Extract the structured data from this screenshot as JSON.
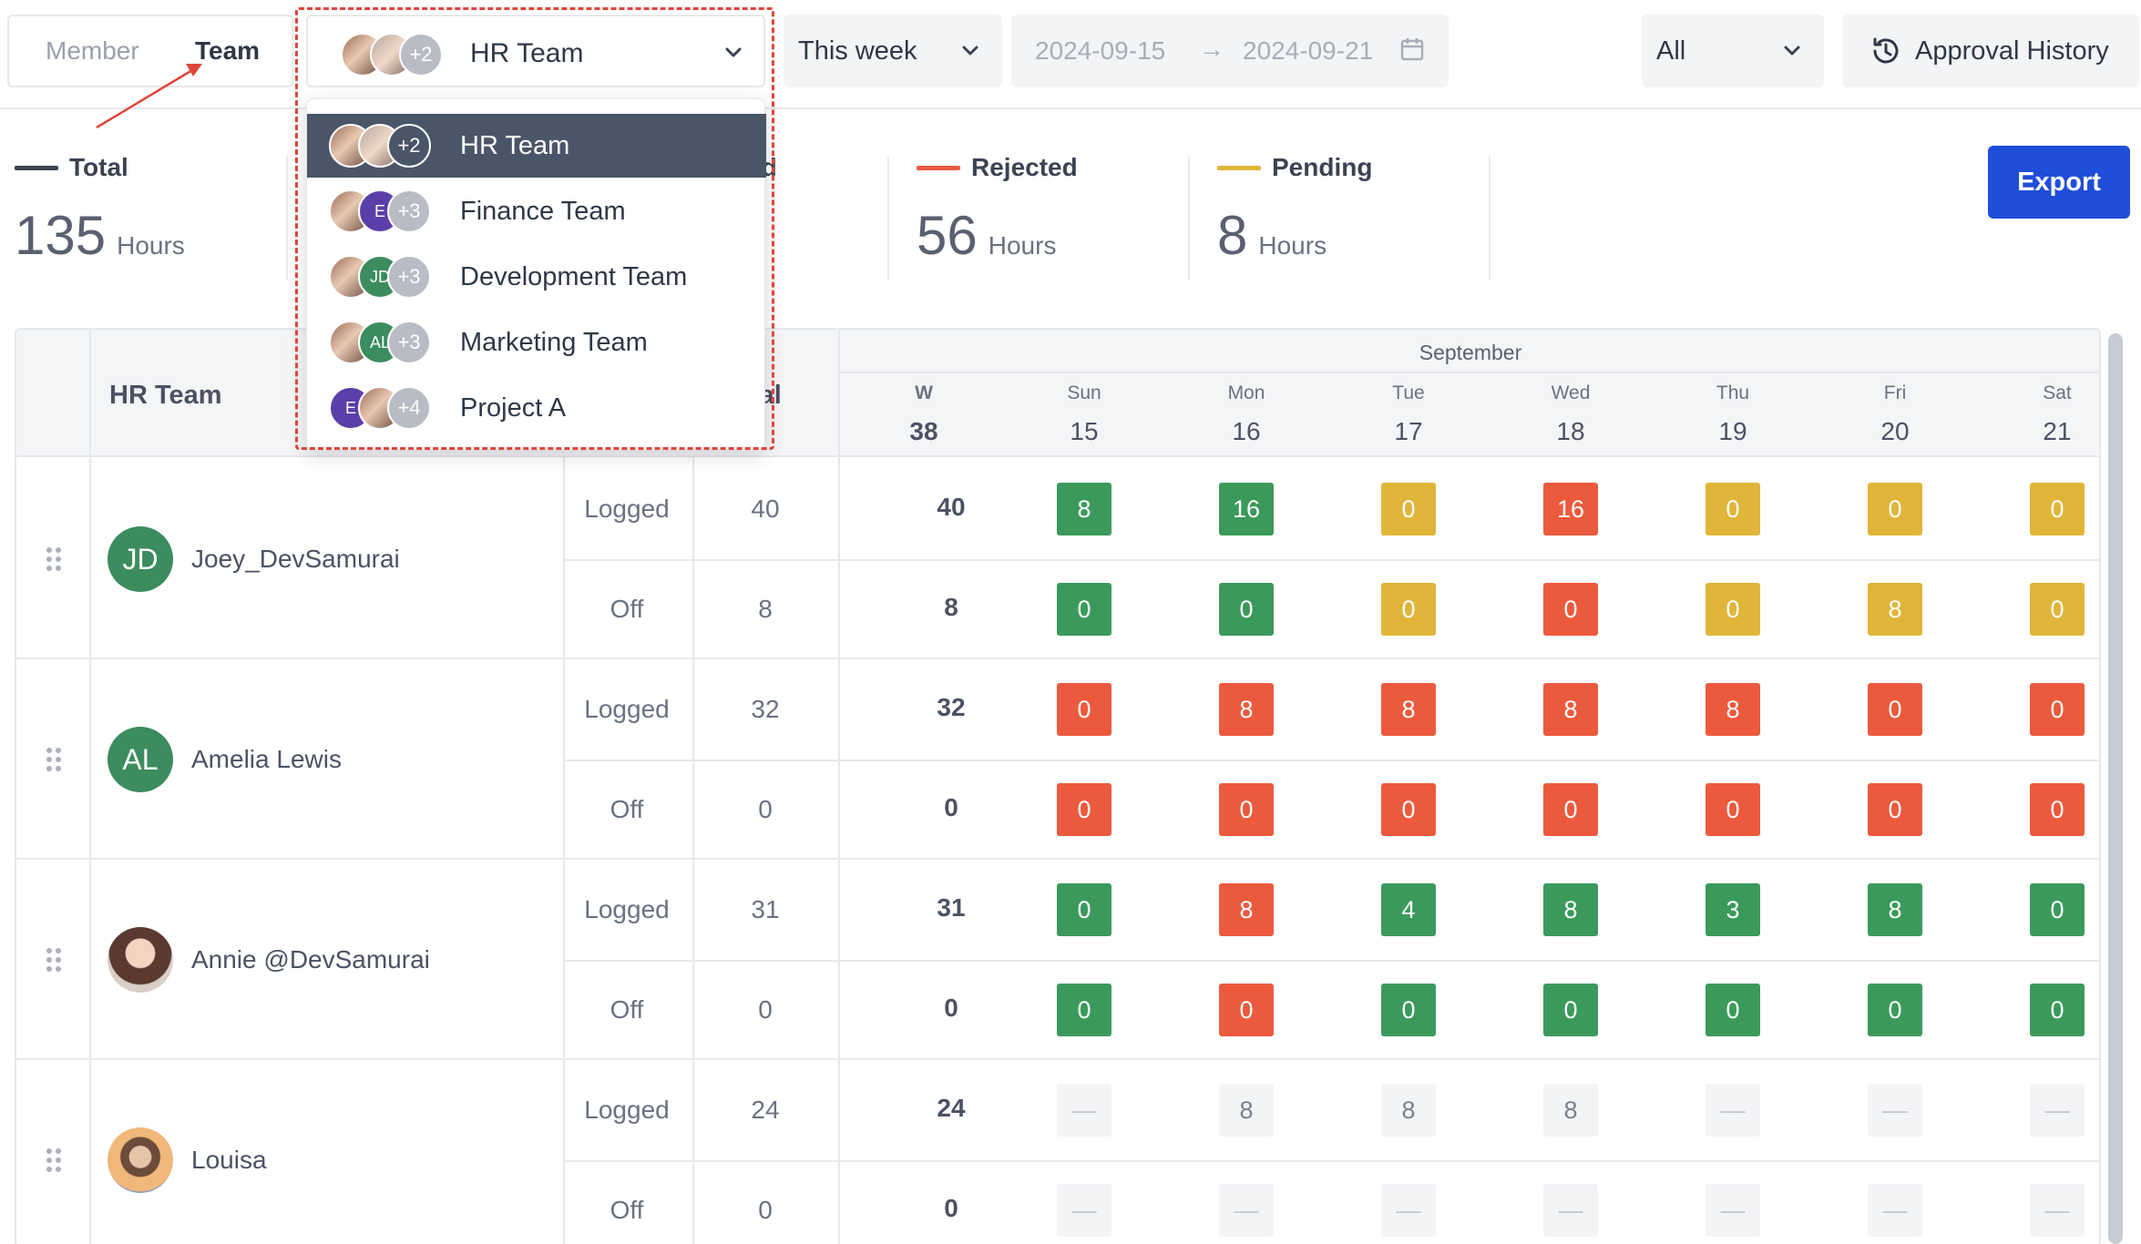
{
  "view_toggle": {
    "member": "Member",
    "team": "Team"
  },
  "team_select": {
    "selected": "HR Team",
    "avatar_more": "+2"
  },
  "week_select": {
    "value": "This week"
  },
  "date_range": {
    "start": "2024-09-15",
    "arrow": "→",
    "end": "2024-09-21"
  },
  "status_filter": {
    "value": "All"
  },
  "approval_history": {
    "label": "Approval History"
  },
  "export": {
    "label": "Export"
  },
  "stats": [
    {
      "label": "Total",
      "value": "135",
      "unit": "Hours",
      "color": "#3b4252"
    },
    {
      "label": "ed",
      "value": "",
      "unit": "",
      "color": ""
    },
    {
      "label": "Rejected",
      "value": "56",
      "unit": "Hours",
      "color": "#ec5a3d"
    },
    {
      "label": "Pending",
      "value": "8",
      "unit": "Hours",
      "color": "#e0b53a"
    }
  ],
  "dropdown": {
    "options": [
      {
        "label": "HR Team",
        "more": "+2",
        "avatars": [
          "photo1",
          "photo2"
        ],
        "initials": [
          "",
          ""
        ],
        "active": true
      },
      {
        "label": "Finance Team",
        "more": "+3",
        "avatars": [
          "photo1",
          "purple"
        ],
        "initials": [
          "",
          "E"
        ],
        "active": false
      },
      {
        "label": "Development Team",
        "more": "+3",
        "avatars": [
          "photo1",
          "green"
        ],
        "initials": [
          "",
          "JD"
        ],
        "active": false
      },
      {
        "label": "Marketing Team",
        "more": "+3",
        "avatars": [
          "photo1",
          "green"
        ],
        "initials": [
          "",
          "AL"
        ],
        "active": false
      },
      {
        "label": "Project A",
        "more": "+4",
        "avatars": [
          "purple",
          "photo1"
        ],
        "initials": [
          "E",
          ""
        ],
        "active": false
      }
    ]
  },
  "table": {
    "team_header": "HR Team",
    "total_header": "tal",
    "month": "September",
    "days": [
      {
        "name": "W",
        "date": "38"
      },
      {
        "name": "Sun",
        "date": "15"
      },
      {
        "name": "Mon",
        "date": "16"
      },
      {
        "name": "Tue",
        "date": "17"
      },
      {
        "name": "Wed",
        "date": "18"
      },
      {
        "name": "Thu",
        "date": "19"
      },
      {
        "name": "Fri",
        "date": "20"
      },
      {
        "name": "Sat",
        "date": "21"
      }
    ],
    "members": [
      {
        "name": "Joey_DevSamurai",
        "initials": "JD",
        "avatar_color": "#3b8c5e",
        "rows": [
          {
            "type": "Logged",
            "total": "40",
            "week": "40",
            "cells": [
              {
                "v": "8",
                "s": "green"
              },
              {
                "v": "16",
                "s": "green"
              },
              {
                "v": "0",
                "s": "yellow"
              },
              {
                "v": "16",
                "s": "red"
              },
              {
                "v": "0",
                "s": "yellow"
              },
              {
                "v": "0",
                "s": "yellow"
              },
              {
                "v": "0",
                "s": "yellow"
              }
            ]
          },
          {
            "type": "Off",
            "total": "8",
            "week": "8",
            "cells": [
              {
                "v": "0",
                "s": "green"
              },
              {
                "v": "0",
                "s": "green"
              },
              {
                "v": "0",
                "s": "yellow"
              },
              {
                "v": "0",
                "s": "red"
              },
              {
                "v": "0",
                "s": "yellow"
              },
              {
                "v": "8",
                "s": "yellow"
              },
              {
                "v": "0",
                "s": "yellow"
              }
            ]
          }
        ]
      },
      {
        "name": "Amelia Lewis",
        "initials": "AL",
        "avatar_color": "#3b8c5e",
        "rows": [
          {
            "type": "Logged",
            "total": "32",
            "week": "32",
            "cells": [
              {
                "v": "0",
                "s": "red"
              },
              {
                "v": "8",
                "s": "red"
              },
              {
                "v": "8",
                "s": "red"
              },
              {
                "v": "8",
                "s": "red"
              },
              {
                "v": "8",
                "s": "red"
              },
              {
                "v": "0",
                "s": "red"
              },
              {
                "v": "0",
                "s": "red"
              }
            ]
          },
          {
            "type": "Off",
            "total": "0",
            "week": "0",
            "cells": [
              {
                "v": "0",
                "s": "red"
              },
              {
                "v": "0",
                "s": "red"
              },
              {
                "v": "0",
                "s": "red"
              },
              {
                "v": "0",
                "s": "red"
              },
              {
                "v": "0",
                "s": "red"
              },
              {
                "v": "0",
                "s": "red"
              },
              {
                "v": "0",
                "s": "red"
              }
            ]
          }
        ]
      },
      {
        "name": "Annie @DevSamurai",
        "initials": "",
        "avatar_color": "photo",
        "rows": [
          {
            "type": "Logged",
            "total": "31",
            "week": "31",
            "cells": [
              {
                "v": "0",
                "s": "green"
              },
              {
                "v": "8",
                "s": "red"
              },
              {
                "v": "4",
                "s": "green"
              },
              {
                "v": "8",
                "s": "green"
              },
              {
                "v": "3",
                "s": "green"
              },
              {
                "v": "8",
                "s": "green"
              },
              {
                "v": "0",
                "s": "green"
              }
            ]
          },
          {
            "type": "Off",
            "total": "0",
            "week": "0",
            "cells": [
              {
                "v": "0",
                "s": "green"
              },
              {
                "v": "0",
                "s": "red"
              },
              {
                "v": "0",
                "s": "green"
              },
              {
                "v": "0",
                "s": "green"
              },
              {
                "v": "0",
                "s": "green"
              },
              {
                "v": "0",
                "s": "green"
              },
              {
                "v": "0",
                "s": "green"
              }
            ]
          }
        ]
      },
      {
        "name": "Louisa",
        "initials": "",
        "avatar_color": "photo",
        "rows": [
          {
            "type": "Logged",
            "total": "24",
            "week": "24",
            "cells": [
              {
                "v": "—",
                "s": "empty"
              },
              {
                "v": "8",
                "s": "gray"
              },
              {
                "v": "8",
                "s": "gray"
              },
              {
                "v": "8",
                "s": "gray"
              },
              {
                "v": "—",
                "s": "empty"
              },
              {
                "v": "—",
                "s": "empty"
              },
              {
                "v": "—",
                "s": "empty"
              }
            ]
          },
          {
            "type": "Off",
            "total": "0",
            "week": "0",
            "cells": [
              {
                "v": "—",
                "s": "empty"
              },
              {
                "v": "—",
                "s": "empty"
              },
              {
                "v": "—",
                "s": "empty"
              },
              {
                "v": "—",
                "s": "empty"
              },
              {
                "v": "—",
                "s": "empty"
              },
              {
                "v": "—",
                "s": "empty"
              },
              {
                "v": "—",
                "s": "empty"
              }
            ]
          }
        ]
      }
    ]
  }
}
